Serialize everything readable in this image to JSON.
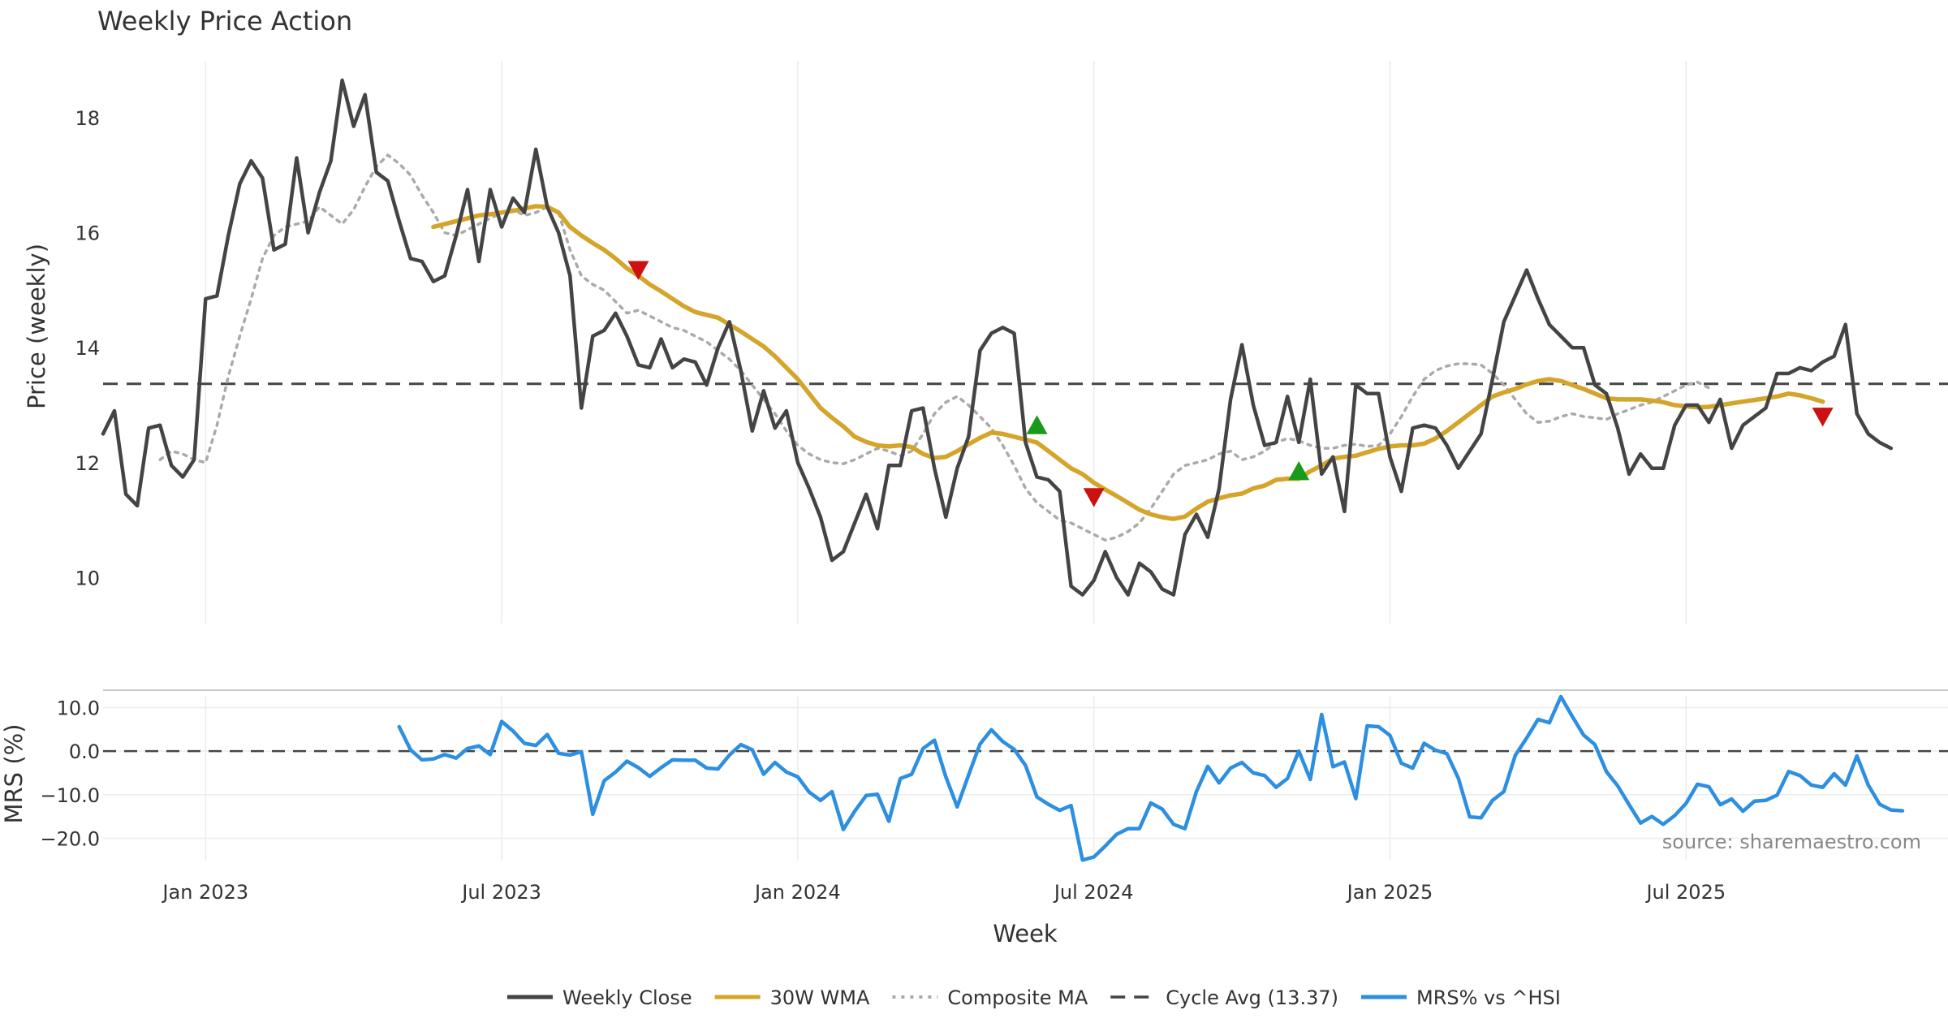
{
  "chart_data": {
    "type": "line",
    "title": "Weekly Price Action",
    "xlabel": "Week",
    "source_note": "source: sharemaestro.com",
    "x_ticks": [
      "Jan 2023",
      "Jul 2023",
      "Jan 2024",
      "Jul 2024",
      "Jan 2025",
      "Jul 2025"
    ],
    "x_tick_weeks": [
      4,
      30,
      56,
      82,
      108,
      134
    ],
    "price_panel": {
      "ylabel": "Price (weekly)",
      "ylim": [
        9.2,
        19.2
      ],
      "y_ticks": [
        10,
        12,
        14,
        16,
        18
      ],
      "cycle_avg": 13.37
    },
    "mrs_panel": {
      "ylabel": "MRS (%)",
      "ylim": [
        -27,
        14
      ],
      "y_ticks": [
        10,
        0,
        -10,
        -20
      ],
      "y_tick_labels": [
        "10.0",
        "0.0",
        "−10.0",
        "−20.0"
      ],
      "zero_line": 0
    },
    "series": [
      {
        "name": "Weekly Close",
        "color": "#444444",
        "style": "solid",
        "start_week": -5,
        "values": [
          12.5,
          12.9,
          11.45,
          11.25,
          12.6,
          12.65,
          11.95,
          11.75,
          12.05,
          14.85,
          14.9,
          15.95,
          16.85,
          17.25,
          16.95,
          15.7,
          15.8,
          17.3,
          16.0,
          16.7,
          17.25,
          18.65,
          17.85,
          18.4,
          17.05,
          16.9,
          16.2,
          15.55,
          15.5,
          15.15,
          15.25,
          15.95,
          16.75,
          15.5,
          16.75,
          16.1,
          16.6,
          16.35,
          17.45,
          16.45,
          16.0,
          15.25,
          12.95,
          14.2,
          14.3,
          14.6,
          14.2,
          13.7,
          13.65,
          14.15,
          13.65,
          13.8,
          13.75,
          13.35,
          14.0,
          14.45,
          13.6,
          12.55,
          13.25,
          12.6,
          12.9,
          12.0,
          11.55,
          11.05,
          10.3,
          10.45,
          10.95,
          11.45,
          10.85,
          11.95,
          11.95,
          12.9,
          12.95,
          11.9,
          11.05,
          11.9,
          12.45,
          13.95,
          14.25,
          14.35,
          14.25,
          12.35,
          11.75,
          11.7,
          11.5,
          9.85,
          9.7,
          9.95,
          10.45,
          10.0,
          9.7,
          10.25,
          10.1,
          9.8,
          9.7,
          10.75,
          11.1,
          10.7,
          11.55,
          13.1,
          14.05,
          13.0,
          12.3,
          12.35,
          13.15,
          12.35,
          13.45,
          11.8,
          12.1,
          11.15,
          13.35,
          13.2,
          13.2,
          12.1,
          11.5,
          12.6,
          12.65,
          12.6,
          12.3,
          11.9,
          12.2,
          12.5,
          13.45,
          14.45,
          14.9,
          15.35,
          14.85,
          14.4,
          14.2,
          14.0,
          14.0,
          13.35,
          13.2,
          12.6,
          11.8,
          12.15,
          11.9,
          11.9,
          12.65,
          13.0,
          13.0,
          12.7,
          13.1,
          12.25,
          12.65,
          12.8,
          12.95,
          13.55,
          13.55,
          13.65,
          13.6,
          13.75,
          13.85,
          14.4,
          12.85,
          12.5,
          12.35,
          12.25
        ]
      },
      {
        "name": "30W WMA",
        "color": "#d4a52a",
        "style": "solid",
        "start_week": 24,
        "values": [
          16.1,
          16.15,
          16.2,
          16.25,
          16.3,
          16.32,
          16.35,
          16.38,
          16.42,
          16.46,
          16.45,
          16.35,
          16.1,
          15.95,
          15.82,
          15.7,
          15.55,
          15.38,
          15.25,
          15.1,
          14.98,
          14.85,
          14.72,
          14.62,
          14.57,
          14.52,
          14.4,
          14.28,
          14.15,
          14.02,
          13.85,
          13.65,
          13.45,
          13.2,
          12.95,
          12.78,
          12.63,
          12.45,
          12.36,
          12.3,
          12.28,
          12.3,
          12.27,
          12.15,
          12.08,
          12.1,
          12.2,
          12.32,
          12.43,
          12.52,
          12.5,
          12.45,
          12.4,
          12.35,
          12.2,
          12.05,
          11.9,
          11.8,
          11.65,
          11.53,
          11.42,
          11.3,
          11.18,
          11.1,
          11.05,
          11.02,
          11.06,
          11.2,
          11.32,
          11.38,
          11.43,
          11.46,
          11.55,
          11.6,
          11.7,
          11.72,
          11.72,
          11.85,
          11.95,
          12.07,
          12.1,
          12.12,
          12.18,
          12.24,
          12.28,
          12.3,
          12.3,
          12.33,
          12.42,
          12.55,
          12.7,
          12.85,
          13.0,
          13.15,
          13.22,
          13.28,
          13.36,
          13.42,
          13.45,
          13.42,
          13.35,
          13.28,
          13.2,
          13.12,
          13.1,
          13.1,
          13.1,
          13.08,
          13.05,
          13.0,
          12.98,
          12.96,
          12.97,
          13.0,
          13.03,
          13.06,
          13.09,
          13.12,
          13.15,
          13.2,
          13.17,
          13.12,
          13.06
        ]
      },
      {
        "name": "Composite MA",
        "color": "#aaaaaa",
        "style": "dotted",
        "start_week": 0,
        "values": [
          12.05,
          12.2,
          12.15,
          12.05,
          12.0,
          12.65,
          13.5,
          14.2,
          14.85,
          15.55,
          15.95,
          16.1,
          16.15,
          16.2,
          16.45,
          16.3,
          16.15,
          16.4,
          16.8,
          17.15,
          17.35,
          17.2,
          17.0,
          16.65,
          16.35,
          16.0,
          15.95,
          16.05,
          16.15,
          16.25,
          16.35,
          16.4,
          16.3,
          16.35,
          16.45,
          16.35,
          15.7,
          15.25,
          15.1,
          15.0,
          14.8,
          14.6,
          14.65,
          14.55,
          14.45,
          14.35,
          14.3,
          14.2,
          14.1,
          13.95,
          13.8,
          13.6,
          13.35,
          13.1,
          12.85,
          12.55,
          12.3,
          12.15,
          12.05,
          12.0,
          11.98,
          12.05,
          12.15,
          12.25,
          12.2,
          12.12,
          12.2,
          12.5,
          12.85,
          13.05,
          13.15,
          13.0,
          12.8,
          12.6,
          12.3,
          11.95,
          11.55,
          11.3,
          11.15,
          11.0,
          10.95,
          10.85,
          10.75,
          10.65,
          10.7,
          10.8,
          10.95,
          11.2,
          11.5,
          11.8,
          11.95,
          12.0,
          12.05,
          12.15,
          12.2,
          12.05,
          12.1,
          12.2,
          12.35,
          12.42,
          12.38,
          12.3,
          12.25,
          12.25,
          12.3,
          12.32,
          12.28,
          12.3,
          12.5,
          12.8,
          13.15,
          13.45,
          13.6,
          13.68,
          13.72,
          13.72,
          13.7,
          13.55,
          13.35,
          13.1,
          12.85,
          12.7,
          12.72,
          12.8,
          12.85,
          12.8,
          12.78,
          12.75,
          12.85,
          12.92,
          13.0,
          13.05,
          13.15,
          13.25,
          13.35,
          13.4,
          13.3
        ]
      },
      {
        "name": "MRS% vs ^HSI",
        "color": "#2d8fe0",
        "style": "solid",
        "start_week": 21,
        "values": [
          5.6,
          0.3,
          -2.0,
          -1.8,
          -0.8,
          -1.6,
          0.6,
          1.2,
          -0.8,
          6.8,
          4.6,
          1.8,
          1.3,
          3.8,
          -0.5,
          -0.9,
          -0.1,
          -14.5,
          -6.8,
          -4.8,
          -2.3,
          -3.8,
          -5.8,
          -3.8,
          -2.0,
          -2.1,
          -2.1,
          -3.9,
          -4.1,
          -0.9,
          1.5,
          0.3,
          -5.3,
          -2.6,
          -4.8,
          -5.9,
          -9.4,
          -11.3,
          -9.3,
          -18.0,
          -13.8,
          -10.2,
          -9.9,
          -16.1,
          -6.3,
          -5.3,
          0.6,
          2.5,
          -5.9,
          -12.8,
          -5.5,
          1.6,
          4.9,
          2.2,
          0.4,
          -3.3,
          -10.5,
          -12.2,
          -13.6,
          -12.5,
          -25.0,
          -24.3,
          -21.8,
          -19.1,
          -17.8,
          -17.8,
          -11.9,
          -13.3,
          -16.8,
          -17.8,
          -9.3,
          -3.5,
          -7.3,
          -3.9,
          -2.6,
          -5.0,
          -5.6,
          -8.3,
          -6.3,
          0.0,
          -6.5,
          8.4,
          -3.6,
          -2.5,
          -10.9,
          5.8,
          5.6,
          3.6,
          -2.8,
          -3.9,
          1.8,
          0.2,
          -0.6,
          -6.2,
          -15.1,
          -15.3,
          -11.3,
          -9.3,
          -1.0,
          3.0,
          7.3,
          6.5,
          12.5,
          8.0,
          3.7,
          1.5,
          -4.7,
          -8.0,
          -12.3,
          -16.5,
          -15.0,
          -16.8,
          -14.8,
          -12.0,
          -7.6,
          -8.2,
          -12.3,
          -11.0,
          -13.8,
          -11.5,
          -11.3,
          -10.1,
          -4.7,
          -5.6,
          -7.8,
          -8.3,
          -5.2,
          -7.8,
          -1.1,
          -7.8,
          -12.2,
          -13.5,
          -13.7
        ]
      }
    ],
    "markers": [
      {
        "type": "sell",
        "week": 42,
        "value": 15.35,
        "color": "#cc1111"
      },
      {
        "type": "buy",
        "week": 77,
        "value": 12.65,
        "color": "#1a9a1a"
      },
      {
        "type": "sell",
        "week": 82,
        "value": 11.4,
        "color": "#cc1111"
      },
      {
        "type": "buy",
        "week": 100,
        "value": 11.85,
        "color": "#1a9a1a"
      },
      {
        "type": "sell",
        "week": 146,
        "value": 12.8,
        "color": "#cc1111"
      }
    ],
    "legend": [
      {
        "label": "Weekly Close",
        "color": "#444444",
        "style": "solid"
      },
      {
        "label": "30W WMA",
        "color": "#d4a52a",
        "style": "solid"
      },
      {
        "label": "Composite MA",
        "color": "#aaaaaa",
        "style": "dotted"
      },
      {
        "label": "Cycle Avg (13.37)",
        "color": "#444444",
        "style": "dashed"
      },
      {
        "label": "MRS% vs ^HSI",
        "color": "#2d8fe0",
        "style": "solid"
      }
    ],
    "legend_position": "bottom-center"
  }
}
